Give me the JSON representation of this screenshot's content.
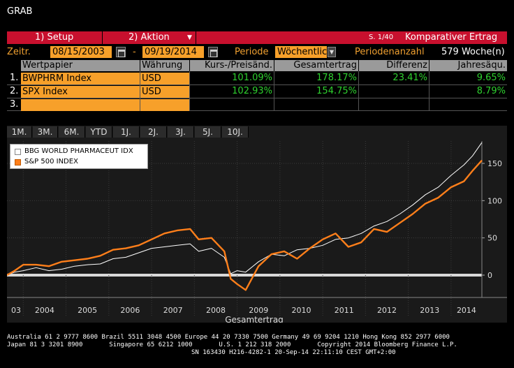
{
  "app": {
    "title": "GRAB"
  },
  "menu": {
    "setup_label": "1) Setup",
    "action_label": "2) Aktion",
    "page_indicator": "S. 1/40",
    "screen_name": "Komparativer Ertrag"
  },
  "params": {
    "period_label": "Zeitr.",
    "start_date": "08/15/2003",
    "dash": "-",
    "end_date": "09/19/2014",
    "periodicity_label": "Periode",
    "periodicity_value": "Wöchentlic",
    "count_label": "Periodenanzahl",
    "count_value": "579 Woche(n)"
  },
  "table": {
    "headers": [
      "Wertpapier",
      "Währung",
      "Kurs-/Preisänd.",
      "Gesamtertrag",
      "Differenz",
      "Jahresäqu."
    ],
    "rows": [
      {
        "num": "1.",
        "security": "BWPHRM Index",
        "currency": "USD",
        "price_change": "101.09%",
        "total_return": "178.17%",
        "difference": "23.41%",
        "annualized": "9.65%"
      },
      {
        "num": "2.",
        "security": "SPX Index",
        "currency": "USD",
        "price_change": "102.93%",
        "total_return": "154.75%",
        "difference": "",
        "annualized": "8.79%"
      },
      {
        "num": "3.",
        "security": "",
        "currency": "",
        "price_change": "",
        "total_return": "",
        "difference": "",
        "annualized": ""
      }
    ]
  },
  "range_tabs": [
    "1M.",
    "3M.",
    "6M.",
    "YTD",
    "1J.",
    "2J.",
    "3J.",
    "5J.",
    "10J."
  ],
  "chart_data": {
    "type": "line",
    "xlabel": "Gesamtertrag",
    "x_ticks": [
      "03",
      "2004",
      "2005",
      "2006",
      "2007",
      "2008",
      "2009",
      "2010",
      "2011",
      "2012",
      "2013",
      "2014"
    ],
    "y_ticks": [
      0,
      50,
      100,
      150
    ],
    "ylim": [
      -30,
      180
    ],
    "xlim": [
      2003.62,
      2014.72
    ],
    "legend_position": "top-left",
    "series": [
      {
        "name": "BBG WORLD PHARMACEUT IDX",
        "color": "#ffffff",
        "x": [
          2003.62,
          2003.8,
          2004.0,
          2004.3,
          2004.6,
          2004.9,
          2005.2,
          2005.5,
          2005.8,
          2006.1,
          2006.4,
          2006.7,
          2007.0,
          2007.3,
          2007.6,
          2007.9,
          2008.1,
          2008.4,
          2008.7,
          2008.85,
          2009.0,
          2009.2,
          2009.5,
          2009.8,
          2010.1,
          2010.4,
          2010.7,
          2011.0,
          2011.3,
          2011.6,
          2011.9,
          2012.2,
          2012.5,
          2012.8,
          2013.1,
          2013.4,
          2013.7,
          2014.0,
          2014.3,
          2014.5,
          2014.72
        ],
        "values": [
          0,
          4,
          6,
          10,
          6,
          8,
          12,
          14,
          15,
          22,
          24,
          30,
          36,
          38,
          40,
          42,
          32,
          36,
          24,
          2,
          6,
          4,
          18,
          28,
          26,
          34,
          36,
          40,
          48,
          50,
          56,
          66,
          72,
          82,
          94,
          108,
          118,
          134,
          148,
          160,
          178
        ]
      },
      {
        "name": "S&P 500 INDEX",
        "color": "#ff7f1a",
        "x": [
          2003.62,
          2003.8,
          2004.0,
          2004.3,
          2004.6,
          2004.9,
          2005.2,
          2005.5,
          2005.8,
          2006.1,
          2006.4,
          2006.7,
          2007.0,
          2007.3,
          2007.6,
          2007.9,
          2008.1,
          2008.4,
          2008.7,
          2008.85,
          2009.0,
          2009.2,
          2009.5,
          2009.8,
          2010.1,
          2010.4,
          2010.7,
          2011.0,
          2011.3,
          2011.6,
          2011.9,
          2012.2,
          2012.5,
          2012.8,
          2013.1,
          2013.4,
          2013.7,
          2014.0,
          2014.3,
          2014.5,
          2014.72
        ],
        "values": [
          0,
          6,
          14,
          14,
          12,
          18,
          20,
          22,
          26,
          34,
          36,
          40,
          48,
          56,
          60,
          62,
          48,
          50,
          32,
          -5,
          -12,
          -20,
          12,
          28,
          32,
          22,
          36,
          48,
          56,
          38,
          44,
          62,
          58,
          70,
          82,
          96,
          104,
          118,
          126,
          140,
          154
        ]
      }
    ]
  },
  "footer": {
    "line1": "Australia 61 2 9777 8600 Brazil 5511 3048 4500 Europe 44 20 7330 7500 Germany 49 69 9204 1210 Hong Kong 852 2977 6000",
    "line2": "Japan 81 3 3201 8900       Singapore 65 6212 1000       U.S. 1 212 318 2000       Copyright 2014 Bloomberg Finance L.P.",
    "line3": "SN 163430 H216-4282-1 20-Sep-14 22:11:10 CEST GMT+2:00"
  },
  "colors": {
    "menu_red": "#c8102e",
    "field_orange": "#f7a02a",
    "label_orange": "#f0a030",
    "value_green": "#2ed12e",
    "pharma_line": "#ffffff",
    "spx_line": "#ff7f1a"
  }
}
